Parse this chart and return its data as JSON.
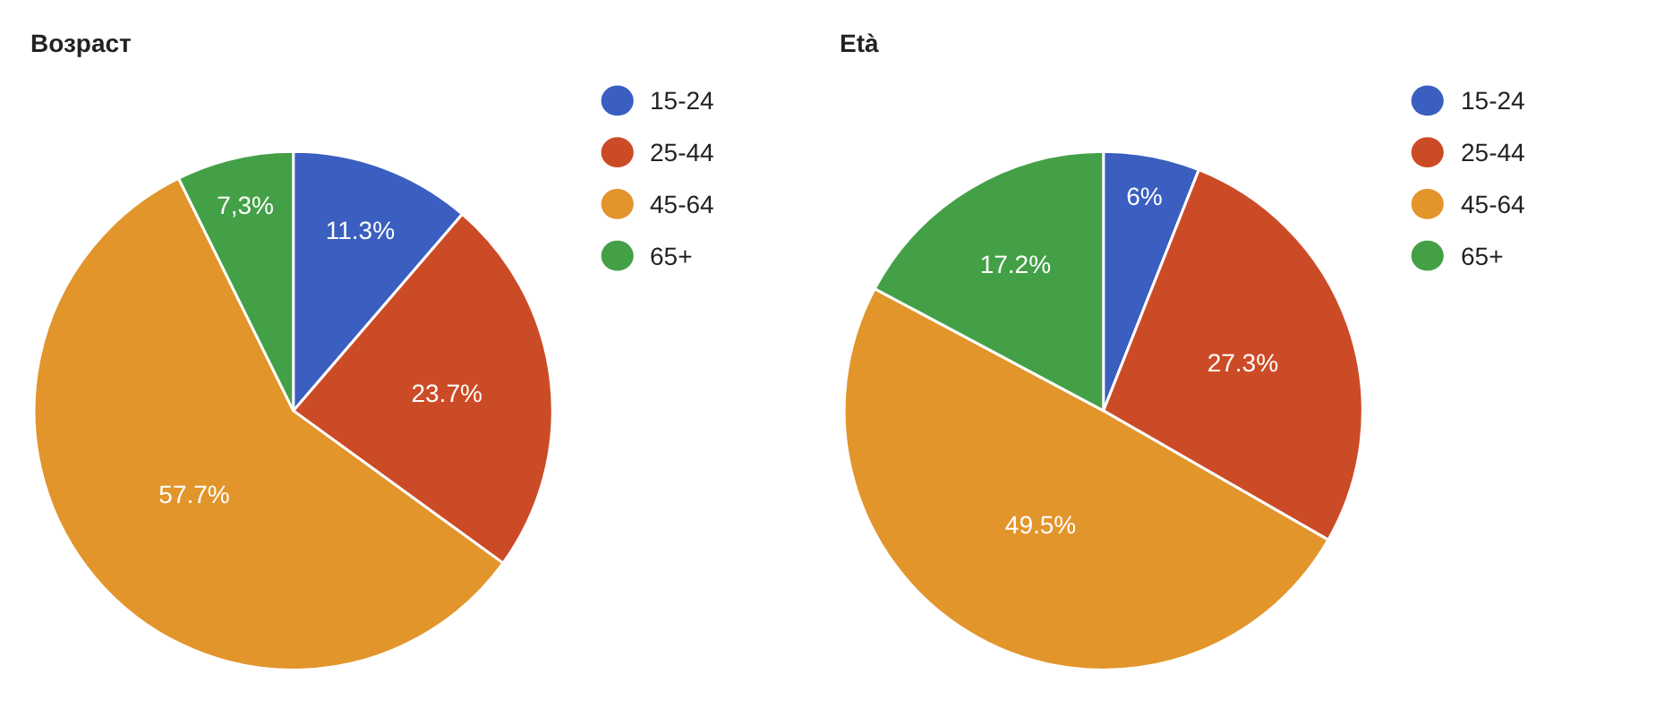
{
  "chart_data": [
    {
      "type": "pie",
      "title": "Возраст",
      "categories": [
        "15-24",
        "25-44",
        "45-64",
        "65+"
      ],
      "values": [
        11.3,
        23.7,
        57.7,
        7.3
      ],
      "value_labels": [
        "11.3%",
        "23.7%",
        "57.7%",
        "7,3%"
      ],
      "colors": [
        "#3b5fc0",
        "#cc4b27",
        "#e2952b",
        "#44a047"
      ],
      "legend": "top right"
    },
    {
      "type": "pie",
      "title": "Età",
      "categories": [
        "15-24",
        "25-44",
        "45-64",
        "65+"
      ],
      "values": [
        6,
        27.3,
        49.5,
        17.2
      ],
      "value_labels": [
        "6%",
        "27.3%",
        "49.5%",
        "17.2%"
      ],
      "colors": [
        "#3b5fc0",
        "#cc4b27",
        "#e2952b",
        "#44a047"
      ],
      "legend": "top right"
    }
  ]
}
